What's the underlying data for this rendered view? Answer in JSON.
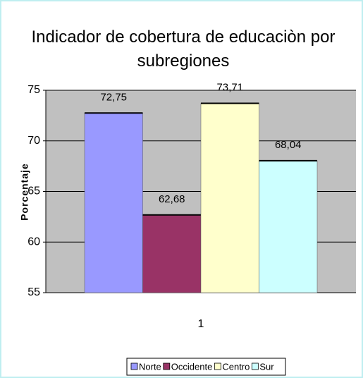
{
  "chart_data": {
    "type": "bar",
    "title": "Indicador de cobertura de educaciòn por subregiones",
    "y_label": "Porcentaje",
    "categories": [
      "1"
    ],
    "series": [
      {
        "name": "Norte",
        "color": "#9999ff",
        "values": [
          72.75
        ],
        "value_labels": [
          "72,75"
        ]
      },
      {
        "name": "Occidente",
        "color": "#993366",
        "values": [
          62.68
        ],
        "value_labels": [
          "62,68"
        ]
      },
      {
        "name": "Centro",
        "color": "#ffffcc",
        "values": [
          73.71
        ],
        "value_labels": [
          "73,71"
        ]
      },
      {
        "name": "Sur",
        "color": "#ccffff",
        "values": [
          68.04
        ],
        "value_labels": [
          "68,04"
        ]
      }
    ],
    "ylim": [
      55,
      75
    ],
    "yticks": [
      55,
      60,
      65,
      70,
      75
    ],
    "grid": true,
    "legend": "bottom"
  }
}
